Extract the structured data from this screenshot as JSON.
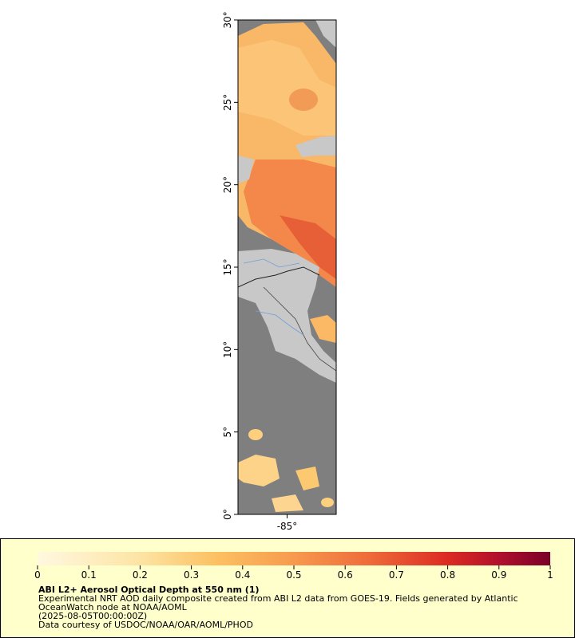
{
  "map": {
    "lat_ticks": [
      {
        "value": 0,
        "label": "0°"
      },
      {
        "value": 5,
        "label": "5°"
      },
      {
        "value": 10,
        "label": "10°"
      },
      {
        "value": 15,
        "label": "15°"
      },
      {
        "value": 20,
        "label": "20°"
      },
      {
        "value": 25,
        "label": "25°"
      },
      {
        "value": 30,
        "label": "30°"
      }
    ],
    "lat_lim": [
      0,
      30
    ],
    "lon_ticks": [
      {
        "value": -85,
        "label": "-85°"
      }
    ],
    "lon_lim": [
      -88,
      -82
    ]
  },
  "legend": {
    "colorbar_lim": [
      0,
      1
    ],
    "colorbar_ticks": [
      0,
      0.1,
      0.2,
      0.3,
      0.4,
      0.5,
      0.6,
      0.7,
      0.8,
      0.9,
      1
    ],
    "title": "ABI L2+ Aerosol Optical Depth at 550 nm (1)",
    "lines": [
      "Experimental NRT AOD daily composite created from ABI L2 data from GOES-19. Fields generated by Atlantic",
      "OceanWatch node at NOAA/AOML",
      "(2025-08-05T00:00:00Z)",
      "Data courtesy of USDOC/NOAA/OAR/AOML/PHOD"
    ]
  }
}
